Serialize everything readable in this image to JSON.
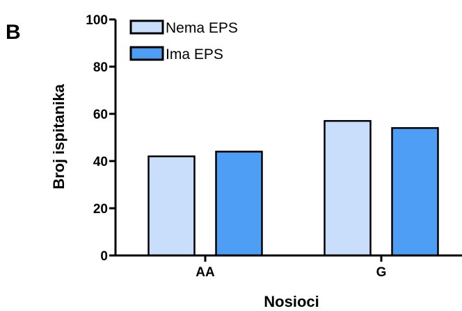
{
  "panel_label": "B",
  "chart_data": {
    "type": "bar",
    "categories": [
      "AA",
      "G"
    ],
    "series": [
      {
        "name": "Nema EPS",
        "values": [
          42,
          57
        ],
        "color": "#c9defb"
      },
      {
        "name": "Ima EPS",
        "values": [
          44,
          54
        ],
        "color": "#4f9ef6"
      }
    ],
    "xlabel": "Nosioci",
    "ylabel": "Broj ispitanika",
    "ylim": [
      0,
      100
    ],
    "yticks": [
      "0",
      "20",
      "40",
      "60",
      "80",
      "100"
    ],
    "grid": false,
    "legend": "top-left"
  }
}
